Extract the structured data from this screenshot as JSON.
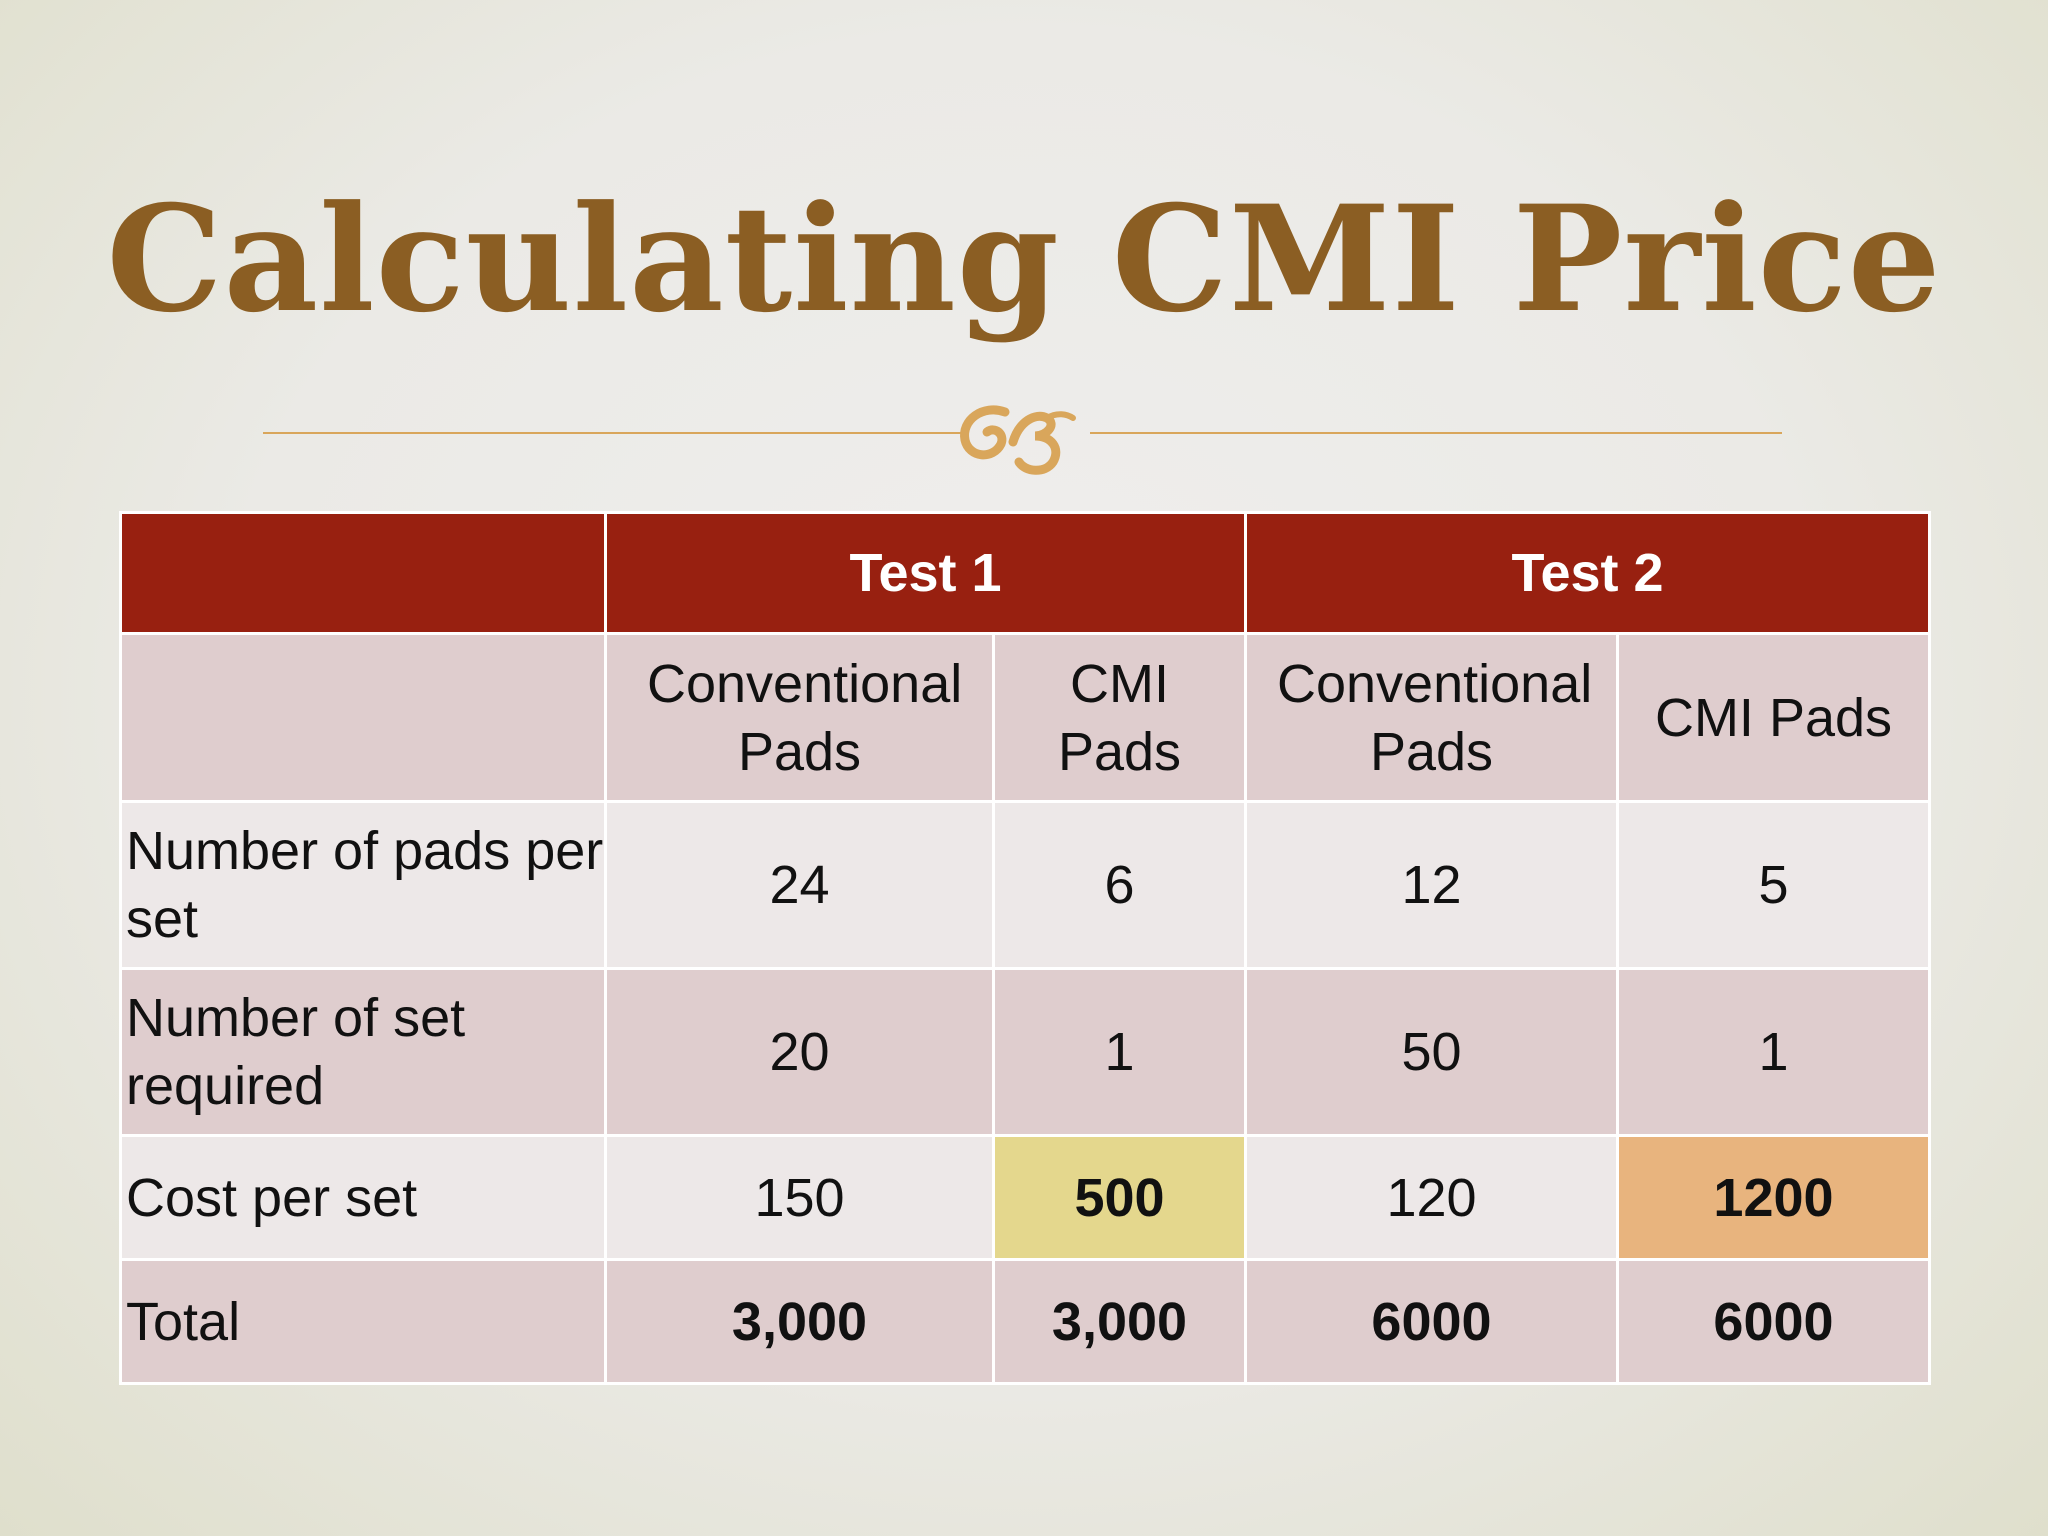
{
  "slide": {
    "title": "Calculating CMI Price",
    "colors": {
      "title": "#8b5e23",
      "header_bg": "#982010",
      "row_dark": "#dfcdce",
      "row_light": "#ede8e8",
      "highlight_yellow": "#e4d78d",
      "highlight_orange": "#e8b47e",
      "divider": "#d9a65b"
    },
    "ornament_icon": "flourish-ornament-icon"
  },
  "table": {
    "groups": [
      "Test 1",
      "Test 2"
    ],
    "subheaders": [
      "Conventional Pads",
      "CMI Pads",
      "Conventional Pads",
      "CMI Pads"
    ],
    "rows": [
      {
        "label": "Number of pads per set",
        "values": [
          "24",
          "6",
          "12",
          "5"
        ]
      },
      {
        "label": "Number of set required",
        "values": [
          "20",
          "1",
          "50",
          "1"
        ]
      },
      {
        "label": "Cost per set",
        "values": [
          "150",
          "500",
          "120",
          "1200"
        ]
      },
      {
        "label": "Total",
        "values": [
          "3,000",
          "3,000",
          "6000",
          "6000"
        ]
      }
    ]
  }
}
